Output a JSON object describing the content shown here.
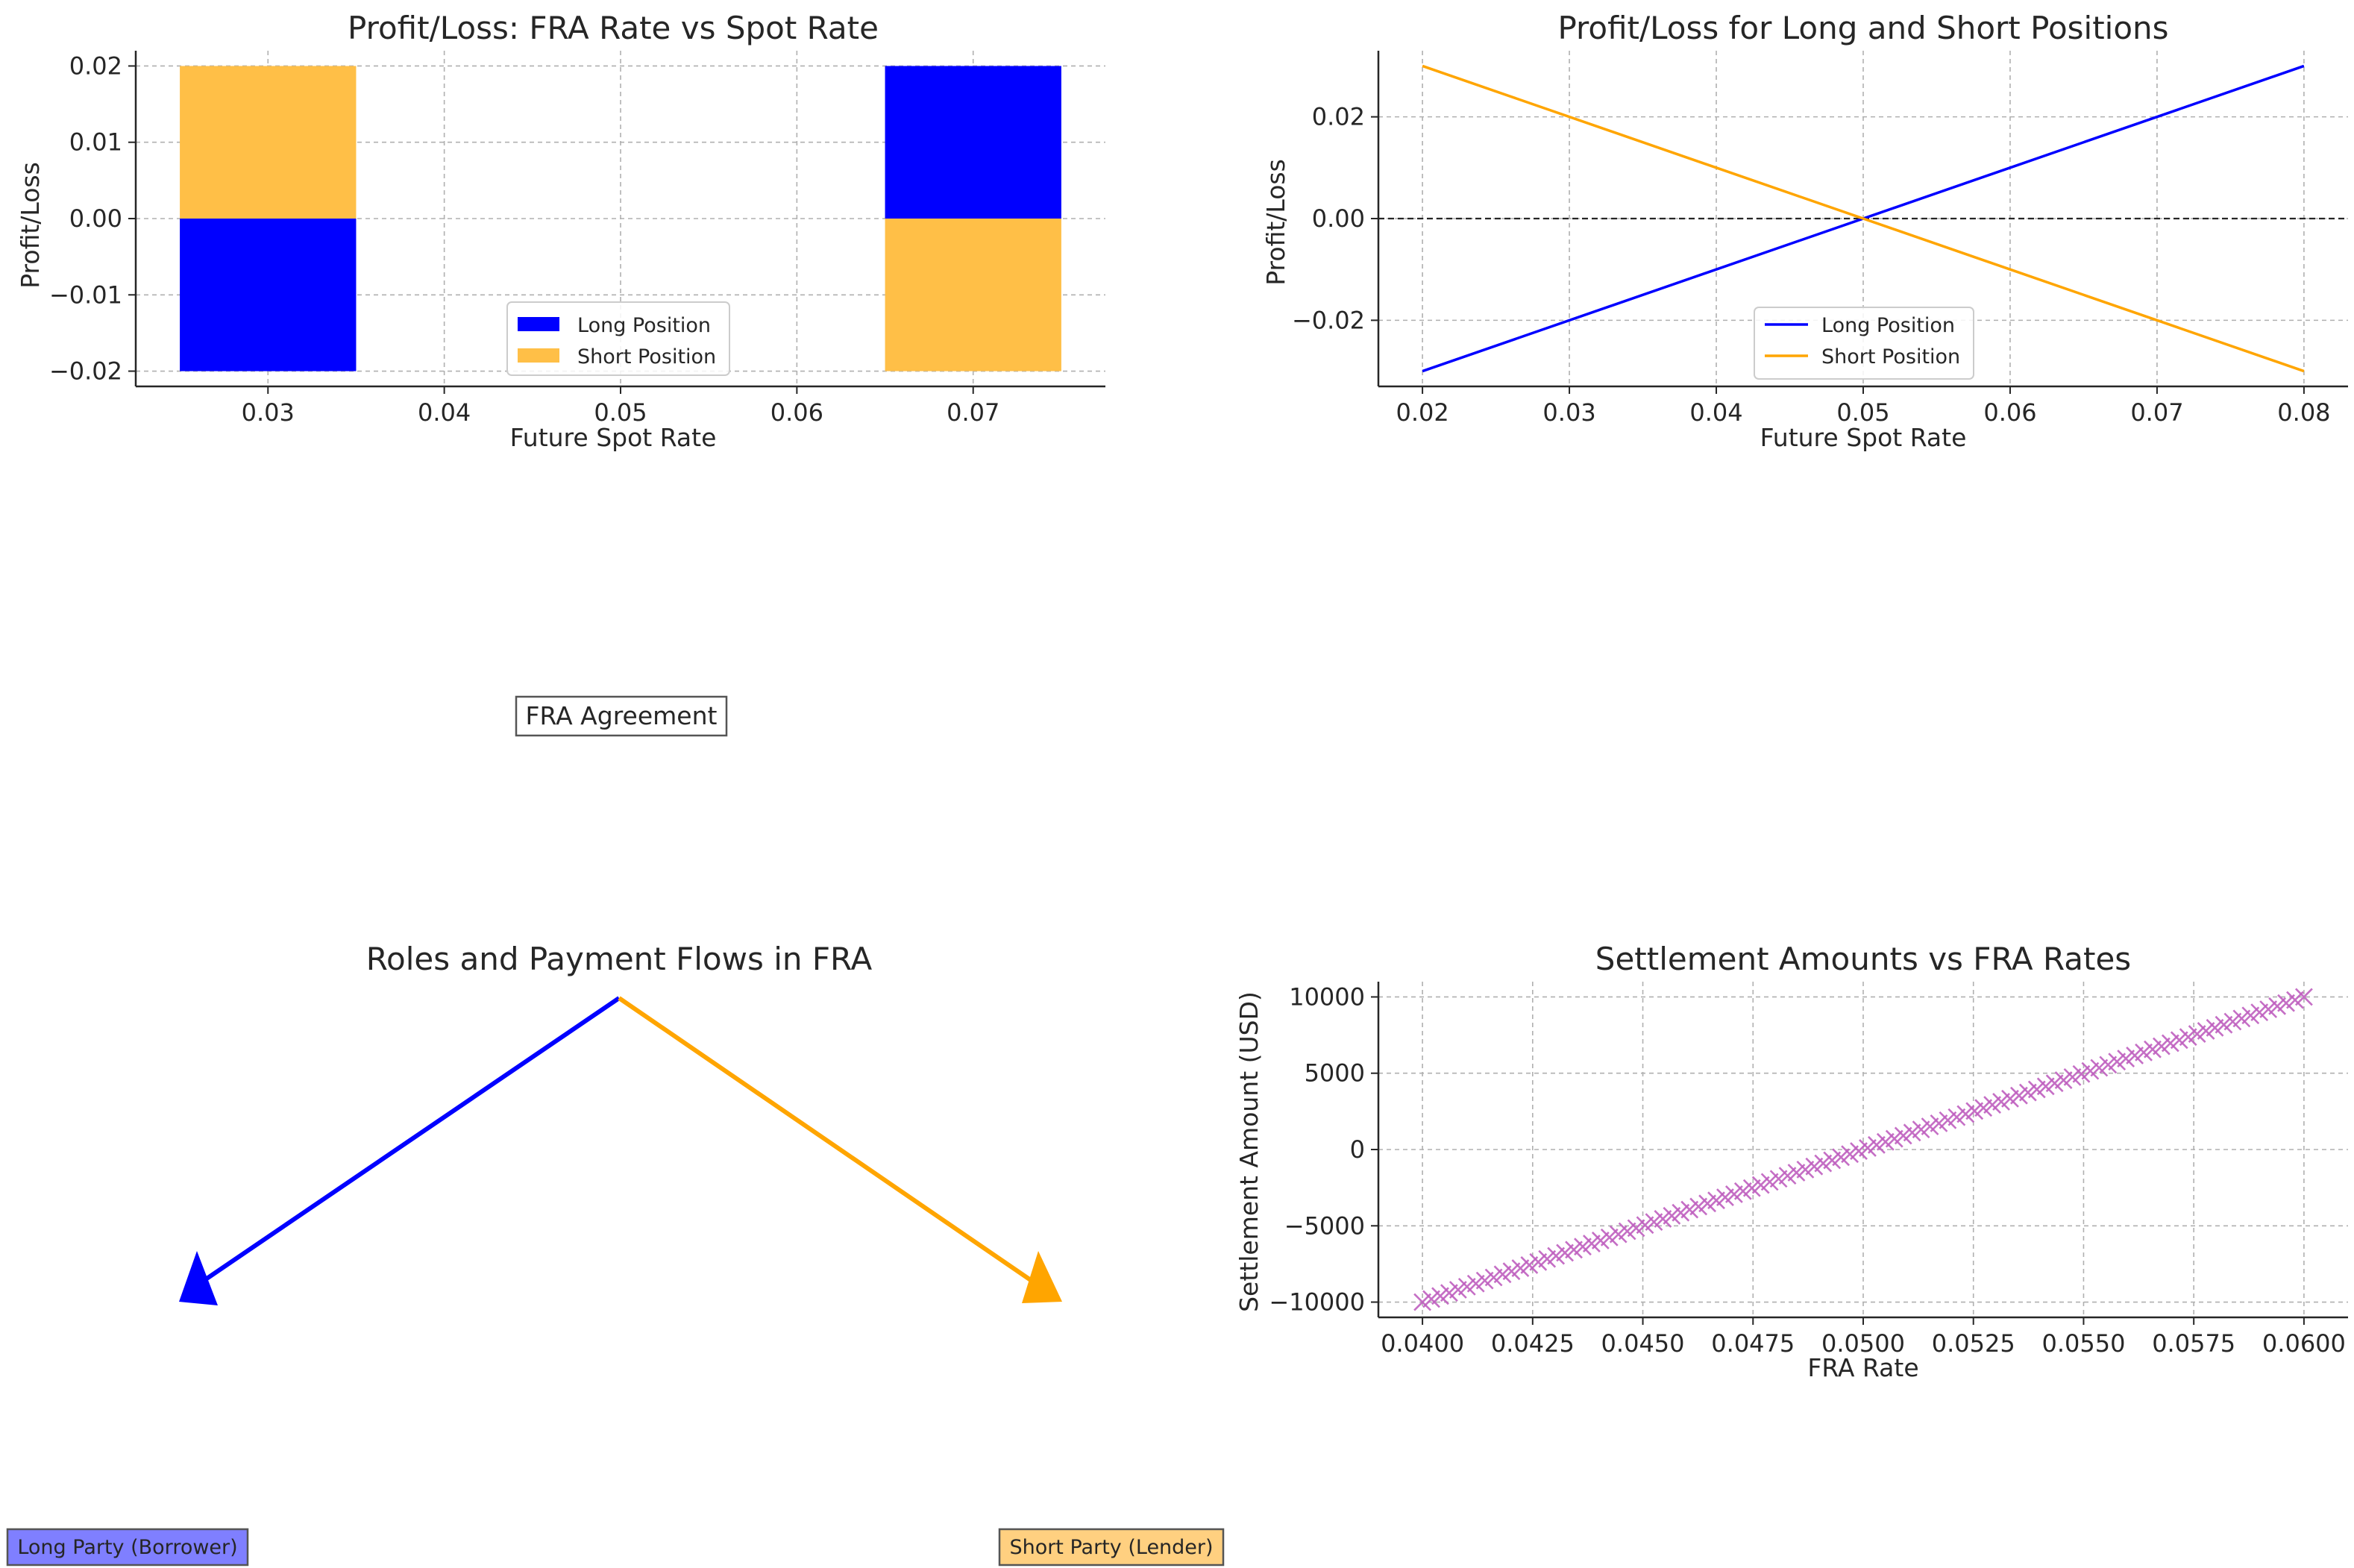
{
  "colors": {
    "long": "#0000ff",
    "short": "#ffa500",
    "settlement": "#bf5fbf",
    "long_box": "#7f7fff",
    "short_box": "#ffd080"
  },
  "chart_data": [
    {
      "type": "bar",
      "title": "Profit/Loss: FRA Rate vs Spot Rate",
      "xlabel": "Future Spot Rate",
      "ylabel": "Profit/Loss",
      "categories": [
        0.03,
        0.07
      ],
      "series": [
        {
          "name": "Long Position",
          "values": [
            -0.02,
            0.02
          ],
          "color": "#0000ff"
        },
        {
          "name": "Short Position",
          "values": [
            0.02,
            -0.02
          ],
          "color": "#ffbf47"
        }
      ],
      "bar_width": 0.01,
      "xlim": [
        0.0225,
        0.0775
      ],
      "ylim": [
        -0.022,
        0.022
      ],
      "xticks": [
        "0.03",
        "0.04",
        "0.05",
        "0.06",
        "0.07"
      ],
      "yticks": [
        "−0.02",
        "−0.01",
        "0.00",
        "0.01",
        "0.02"
      ],
      "grid": true,
      "legend": "lower center"
    },
    {
      "type": "line",
      "title": "Profit/Loss for Long and Short Positions",
      "xlabel": "Future Spot Rate",
      "ylabel": "Profit/Loss",
      "x": [
        0.02,
        0.08
      ],
      "series": [
        {
          "name": "Long Position",
          "values": [
            -0.03,
            0.03
          ],
          "color": "#0000ff"
        },
        {
          "name": "Short Position",
          "values": [
            0.03,
            -0.03
          ],
          "color": "#ffa500"
        }
      ],
      "hline": 0,
      "xlim": [
        0.017,
        0.083
      ],
      "ylim": [
        -0.033,
        0.033
      ],
      "xticks": [
        "0.02",
        "0.03",
        "0.04",
        "0.05",
        "0.06",
        "0.07",
        "0.08"
      ],
      "yticks": [
        "−0.02",
        "0.00",
        "0.02"
      ],
      "grid": true,
      "legend": "lower center"
    },
    {
      "type": "scatter",
      "title": "Settlement Amounts vs FRA Rates",
      "xlabel": "FRA Rate",
      "ylabel": "Settlement Amount (USD)",
      "x_range": [
        0.04,
        0.06
      ],
      "y_range": [
        -10000,
        10000
      ],
      "points": 100,
      "marker": "x",
      "color": "#bf5fbf",
      "xlim": [
        0.039,
        0.061
      ],
      "ylim": [
        -11000,
        11000
      ],
      "xticks": [
        "0.0400",
        "0.0425",
        "0.0450",
        "0.0475",
        "0.0500",
        "0.0525",
        "0.0550",
        "0.0575",
        "0.0600"
      ],
      "yticks": [
        "−10000",
        "−5000",
        "0",
        "5000",
        "10000"
      ],
      "grid": true
    }
  ],
  "diagram": {
    "title": "Roles and Payment Flows in FRA",
    "center_label": "FRA Agreement",
    "left_label": "Long Party (Borrower)",
    "right_label": "Short Party (Lender)"
  }
}
